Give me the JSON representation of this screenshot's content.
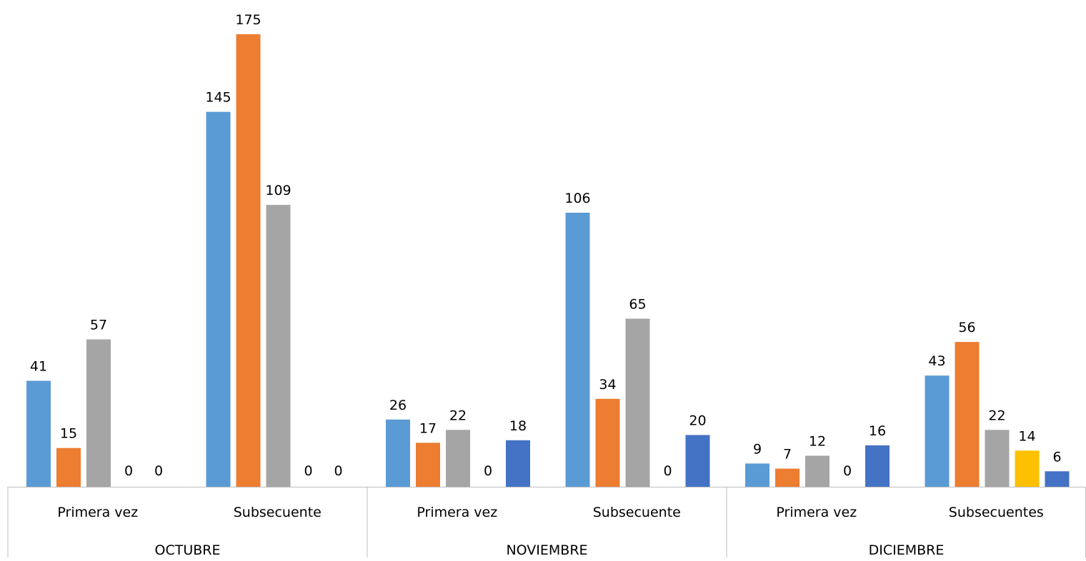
{
  "chart_data": {
    "type": "bar",
    "title": "",
    "xlabel": "",
    "ylabel": "",
    "ylim": [
      0,
      175
    ],
    "grid": false,
    "legend": "none",
    "months": [
      {
        "label": "OCTUBRE",
        "categories": [
          {
            "label": "Primera vez",
            "values": [
              41,
              15,
              57,
              0,
              0
            ]
          },
          {
            "label": "Subsecuente",
            "values": [
              145,
              175,
              109,
              0,
              0
            ]
          }
        ]
      },
      {
        "label": "NOVIEMBRE",
        "categories": [
          {
            "label": "Primera vez",
            "values": [
              26,
              17,
              22,
              0,
              18
            ]
          },
          {
            "label": "Subsecuente",
            "values": [
              106,
              34,
              65,
              0,
              20
            ]
          }
        ]
      },
      {
        "label": "DICIEMBRE",
        "categories": [
          {
            "label": "Primera vez",
            "values": [
              9,
              7,
              12,
              0,
              16
            ]
          },
          {
            "label": "Subsecuentes",
            "values": [
              43,
              56,
              22,
              14,
              6
            ]
          }
        ]
      }
    ],
    "series_colors": [
      "#5b9bd5",
      "#ed7d31",
      "#a5a5a5",
      "#ffc000",
      "#4472c4"
    ]
  }
}
